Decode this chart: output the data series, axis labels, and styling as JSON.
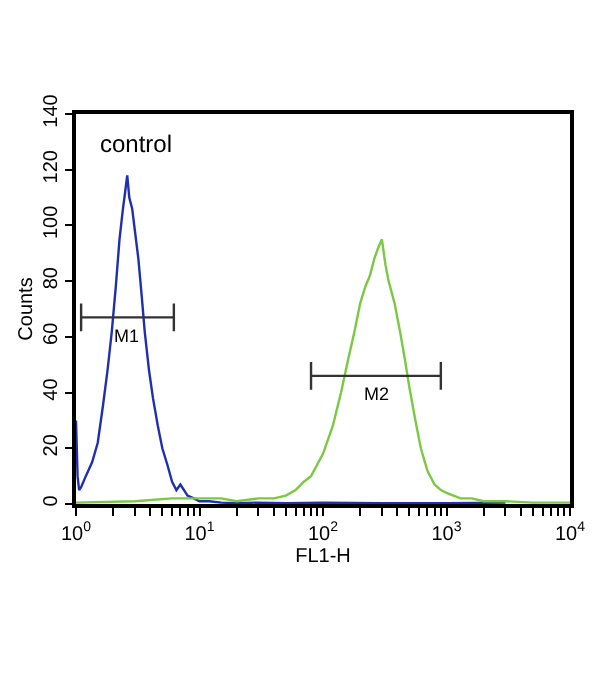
{
  "chart_data": {
    "type": "line",
    "xlabel": "FL1-H",
    "ylabel": "Counts",
    "log": "x",
    "grid": false,
    "marker": "none",
    "xlim": [
      1,
      10000
    ],
    "ylim": [
      0,
      140
    ],
    "xticks": [
      {
        "value": 1,
        "label": "10$^{0}$"
      },
      {
        "value": 2,
        "label": null
      },
      {
        "value": 3,
        "label": null
      },
      {
        "value": 4,
        "label": null
      },
      {
        "value": 5,
        "label": null
      },
      {
        "value": 6,
        "label": null
      },
      {
        "value": 7,
        "label": null
      },
      {
        "value": 8,
        "label": null
      },
      {
        "value": 9,
        "label": null
      },
      {
        "value": 10,
        "label": "10$^{1}$"
      },
      {
        "value": 20,
        "label": null
      },
      {
        "value": 30,
        "label": null
      },
      {
        "value": 40,
        "label": null
      },
      {
        "value": 50,
        "label": null
      },
      {
        "value": 60,
        "label": null
      },
      {
        "value": 70,
        "label": null
      },
      {
        "value": 80,
        "label": null
      },
      {
        "value": 90,
        "label": null
      },
      {
        "value": 100,
        "label": "10$^{2}$"
      },
      {
        "value": 200,
        "label": null
      },
      {
        "value": 300,
        "label": null
      },
      {
        "value": 400,
        "label": null
      },
      {
        "value": 500,
        "label": null
      },
      {
        "value": 600,
        "label": null
      },
      {
        "value": 700,
        "label": null
      },
      {
        "value": 800,
        "label": null
      },
      {
        "value": 900,
        "label": null
      },
      {
        "value": 1000,
        "label": "10$^{3}$"
      },
      {
        "value": 2000,
        "label": null
      },
      {
        "value": 3000,
        "label": null
      },
      {
        "value": 4000,
        "label": null
      },
      {
        "value": 5000,
        "label": null
      },
      {
        "value": 6000,
        "label": null
      },
      {
        "value": 7000,
        "label": null
      },
      {
        "value": 8000,
        "label": null
      },
      {
        "value": 9000,
        "label": null
      },
      {
        "value": 10000,
        "label": "10$^{4}$"
      }
    ],
    "yticks": [
      0,
      20,
      40,
      60,
      80,
      100,
      120,
      140
    ],
    "annotations": [
      "control",
      {
        "text": "M1",
        "x": 2.6,
        "y": 67
      },
      {
        "text": "M2",
        "x": 270,
        "y": 46
      }
    ],
    "series": [
      {
        "color": "#1f2fb0",
        "x": [
          1,
          1.03,
          1.06,
          1.1,
          1.2,
          1.35,
          1.5,
          1.65,
          1.8,
          1.95,
          2.1,
          2.25,
          2.4,
          2.5,
          2.6,
          2.7,
          2.85,
          3,
          3.2,
          3.4,
          3.6,
          3.9,
          4.2,
          4.6,
          5,
          5.5,
          6,
          6.5,
          7,
          8,
          9,
          10,
          12,
          15,
          20,
          30,
          50,
          100,
          300,
          1000,
          3000
        ],
        "values": [
          30,
          10,
          5,
          6,
          10,
          15,
          22,
          35,
          48,
          62,
          78,
          95,
          106,
          112,
          118,
          110,
          106,
          98,
          88,
          75,
          62,
          48,
          38,
          28,
          20,
          14,
          8,
          5,
          7,
          3,
          2,
          1,
          1,
          0.5,
          0.3,
          0.5,
          0.3,
          0.5,
          0.3,
          0.3,
          0.5
        ]
      },
      {
        "color": "#7ac943",
        "x": [
          1,
          3,
          6,
          10,
          15,
          20,
          30,
          40,
          50,
          60,
          70,
          80,
          100,
          120,
          140,
          160,
          180,
          200,
          220,
          240,
          260,
          280,
          300,
          320,
          340,
          380,
          420,
          460,
          500,
          560,
          620,
          700,
          800,
          900,
          1000,
          1300,
          1600,
          2000,
          3000,
          5000,
          10000
        ],
        "values": [
          0.5,
          1,
          2,
          2,
          2,
          1,
          2,
          2,
          3,
          5,
          8,
          10,
          18,
          28,
          40,
          52,
          62,
          72,
          78,
          82,
          88,
          92,
          95,
          86,
          80,
          72,
          62,
          52,
          42,
          30,
          20,
          12,
          7,
          5,
          4,
          2,
          2,
          1,
          1,
          0.5,
          0.5
        ]
      },
      {
        "color": "#333333",
        "x": [
          1.1,
          1.1,
          1.1,
          6.2,
          6.2,
          6.2
        ],
        "values": [
          72,
          62,
          67,
          67,
          72,
          62
        ]
      },
      {
        "color": "#333333",
        "x": [
          80,
          80,
          80,
          900,
          900,
          900
        ],
        "values": [
          51,
          41,
          46,
          46,
          51,
          41
        ]
      }
    ]
  }
}
